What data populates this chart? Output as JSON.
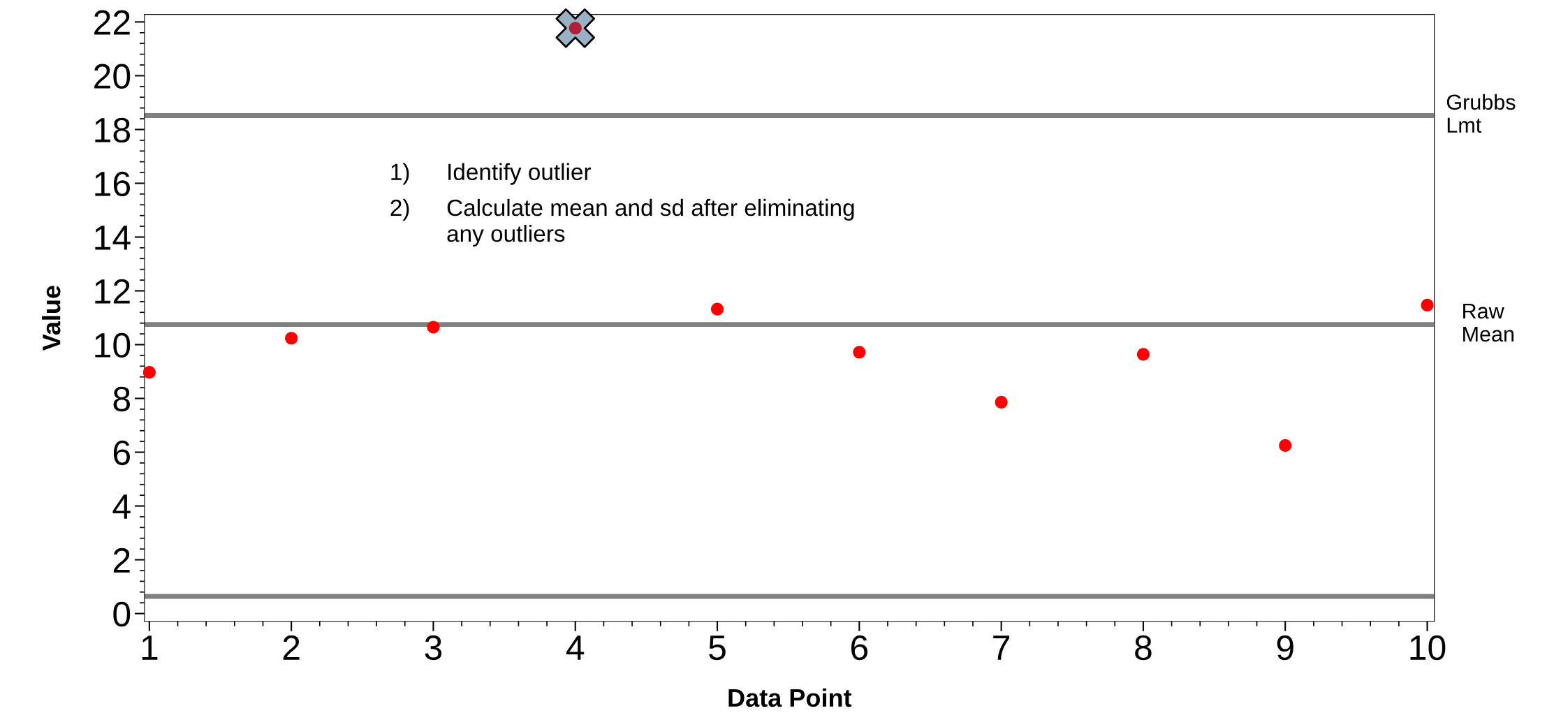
{
  "chart_data": {
    "type": "scatter",
    "xlabel": "Data Point",
    "ylabel": "Value",
    "x": [
      1,
      2,
      3,
      4,
      5,
      6,
      7,
      8,
      9,
      10
    ],
    "series": [
      {
        "marker": "cross",
        "color": "#9ab0c4",
        "values": [
          null,
          null,
          null,
          21.77,
          null,
          null,
          null,
          null,
          null,
          null
        ]
      },
      {
        "marker": "circle",
        "colors": [
          "#ff0000",
          "#ff0000",
          "#ff0000",
          "#b0203a",
          "#ff0000",
          "#ff0000",
          "#ff0000",
          "#ff0000",
          "#ff0000",
          "#ff0000"
        ],
        "values": [
          8.97,
          10.24,
          10.65,
          21.77,
          11.32,
          9.72,
          7.86,
          9.64,
          6.25,
          11.47
        ]
      }
    ],
    "xlim": [
      0.966,
      10.05
    ],
    "xticks": [
      1,
      2,
      3,
      4,
      5,
      6,
      7,
      8,
      9,
      10
    ],
    "ylim": [
      -0.29,
      22.28
    ],
    "yticks": [
      0,
      2,
      4,
      6,
      8,
      10,
      12,
      14,
      16,
      18,
      20,
      22
    ],
    "ref_lines": [
      {
        "axis": "y",
        "value": 18.52,
        "label": "Grubbs\nLmt",
        "color": "#808080"
      },
      {
        "axis": "y",
        "value": 10.75,
        "label": "Raw\nMean",
        "color": "#808080"
      },
      {
        "axis": "y",
        "value": 0.64,
        "label": null,
        "color": "#808080"
      }
    ],
    "annotations": [
      "1) Identify outlier",
      "2) Calculate mean and sd after eliminating\nany outliers"
    ],
    "grid": false
  }
}
